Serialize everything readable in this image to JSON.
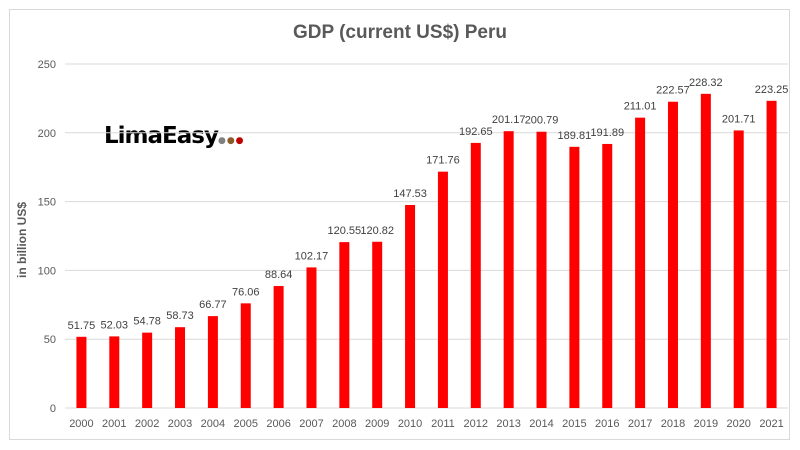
{
  "chart_data": {
    "type": "bar",
    "title": "GDP (current US$) Peru",
    "xlabel": "",
    "ylabel": "in billion US$",
    "categories": [
      "2000",
      "2001",
      "2002",
      "2003",
      "2004",
      "2005",
      "2006",
      "2007",
      "2008",
      "2009",
      "2010",
      "2011",
      "2012",
      "2013",
      "2014",
      "2015",
      "2016",
      "2017",
      "2018",
      "2019",
      "2020",
      "2021"
    ],
    "values": [
      51.75,
      52.03,
      54.78,
      58.73,
      66.77,
      76.06,
      88.64,
      102.17,
      120.55,
      120.82,
      147.53,
      171.76,
      192.65,
      201.17,
      200.79,
      189.81,
      191.89,
      211.01,
      222.57,
      228.32,
      201.71,
      223.25
    ],
    "value_labels": [
      "51.75",
      "52.03",
      "54.78",
      "58.73",
      "66.77",
      "76.06",
      "88.64",
      "102.17",
      "120.55",
      "120.82",
      "147.53",
      "171.76",
      "192.65",
      "201.17",
      "200.79",
      "189.81",
      "191.89",
      "211.01",
      "222.57",
      "228.32",
      "201.71",
      "223.25"
    ],
    "ylim": [
      0,
      250
    ],
    "yticks": [
      0,
      50,
      100,
      150,
      200,
      250
    ],
    "grid": true,
    "legend": "none",
    "bar_color": "#ff0000"
  },
  "logo": {
    "text": "LimaEasy"
  }
}
